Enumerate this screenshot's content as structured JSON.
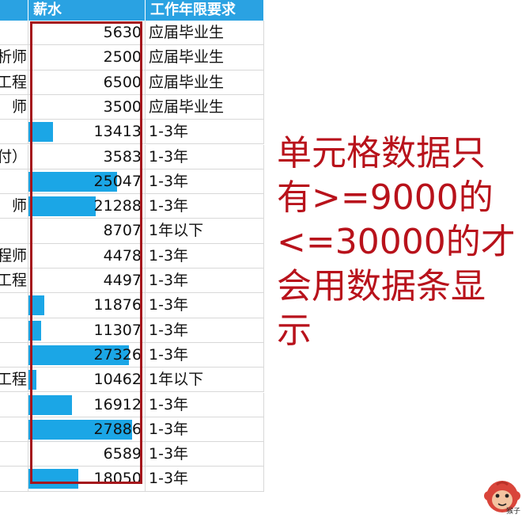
{
  "header": {
    "col_name": "",
    "col_salary": "薪水",
    "col_experience": "工作年限要求"
  },
  "rows": [
    {
      "name": "",
      "salary": "5630",
      "salary_value": 5630,
      "experience": "应届毕业生"
    },
    {
      "name": "析师",
      "salary": "2500",
      "salary_value": 2500,
      "experience": "应届毕业生"
    },
    {
      "name": "工程",
      "salary": "6500",
      "salary_value": 6500,
      "experience": "应届毕业生"
    },
    {
      "name": "师",
      "salary": "3500",
      "salary_value": 3500,
      "experience": "应届毕业生"
    },
    {
      "name": "",
      "salary": "13413",
      "salary_value": 13413,
      "experience": "1-3年"
    },
    {
      "name": "（付",
      "salary": "3583",
      "salary_value": 3583,
      "experience": "1-3年"
    },
    {
      "name": "",
      "salary": "25047",
      "salary_value": 25047,
      "experience": "1-3年"
    },
    {
      "name": "师",
      "salary": "21288",
      "salary_value": 21288,
      "experience": "1-3年"
    },
    {
      "name": "",
      "salary": "8707",
      "salary_value": 8707,
      "experience": "1年以下"
    },
    {
      "name": "程师",
      "salary": "4478",
      "salary_value": 4478,
      "experience": "1-3年"
    },
    {
      "name": "工程",
      "salary": "4497",
      "salary_value": 4497,
      "experience": "1-3年"
    },
    {
      "name": "",
      "salary": "11876",
      "salary_value": 11876,
      "experience": "1-3年"
    },
    {
      "name": "",
      "salary": "11307",
      "salary_value": 11307,
      "experience": "1-3年"
    },
    {
      "name": "",
      "salary": "27326",
      "salary_value": 27326,
      "experience": "1-3年"
    },
    {
      "name": "工程",
      "salary": "10462",
      "salary_value": 10462,
      "experience": "1年以下"
    },
    {
      "name": "",
      "salary": "16912",
      "salary_value": 16912,
      "experience": "1-3年"
    },
    {
      "name": "",
      "salary": "27886",
      "salary_value": 27886,
      "experience": "1-3年"
    },
    {
      "name": "",
      "salary": "6589",
      "salary_value": 6589,
      "experience": "1-3年"
    },
    {
      "name": "",
      "salary": "18050",
      "salary_value": 18050,
      "experience": "1-3年"
    }
  ],
  "databar_rule": {
    "min": 9000,
    "max": 30000,
    "color": "#1ba6e6"
  },
  "annotation": {
    "text": "单元格数据只有>=9000的<=30000的才会用数据条显示",
    "color": "#b8121b"
  },
  "logo": {
    "icon": "monkey-icon",
    "text": "猴子"
  },
  "colors": {
    "header_bg": "#2aa2e2",
    "highlight_border": "#a5151c"
  }
}
